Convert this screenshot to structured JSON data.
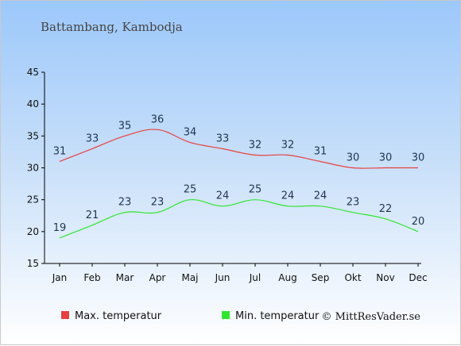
{
  "chart_data": {
    "type": "line",
    "title": "Battambang, Kambodja",
    "categories": [
      "Jan",
      "Feb",
      "Mar",
      "Apr",
      "Maj",
      "Jun",
      "Jul",
      "Aug",
      "Sep",
      "Okt",
      "Nov",
      "Dec"
    ],
    "yticks": [
      "15",
      "20",
      "25",
      "30",
      "35",
      "40",
      "45"
    ],
    "ylim": [
      15,
      45
    ],
    "grid": false,
    "series": [
      {
        "name": "Max. temperatur",
        "color": "#e84040",
        "values": [
          31,
          33,
          35,
          36,
          34,
          33,
          32,
          32,
          31,
          30,
          30,
          30
        ]
      },
      {
        "name": "Min. temperatur",
        "color": "#2ee62e",
        "values": [
          19,
          21,
          23,
          23,
          25,
          24,
          25,
          24,
          24,
          23,
          22,
          20
        ]
      }
    ],
    "legend_position": "bottom-left",
    "credit": "© MittResVader.se"
  }
}
